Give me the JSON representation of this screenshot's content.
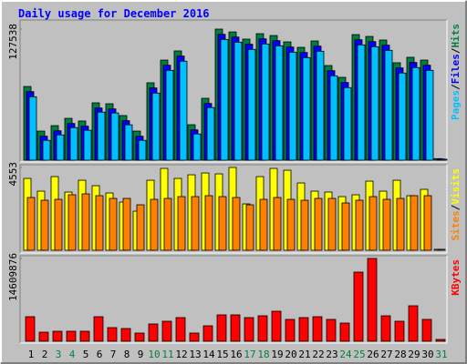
{
  "title": "Daily usage for December 2016",
  "legend_separator": "/",
  "chart_data": [
    {
      "type": "bar",
      "ylim": [
        0,
        127538
      ],
      "yticks": [
        127538
      ],
      "series": [
        {
          "name": "Hits",
          "color": "#008040",
          "values": [
            71700,
            28300,
            33600,
            40700,
            38100,
            55800,
            54900,
            43400,
            28300,
            75300,
            97400,
            106300,
            34500,
            60200,
            127538,
            124800,
            117800,
            123100,
            121300,
            115100,
            109800,
            116000,
            92100,
            80600,
            122200,
            120400,
            116900,
            94800,
            100100,
            97400,
            1500
          ]
        },
        {
          "name": "Files",
          "color": "#0000ff",
          "values": [
            66700,
            23300,
            28600,
            35700,
            33100,
            50800,
            49900,
            38400,
            23300,
            70300,
            92400,
            101300,
            29500,
            55200,
            122500,
            119800,
            112800,
            118100,
            116300,
            110100,
            104800,
            111000,
            87100,
            75600,
            117200,
            115400,
            111900,
            89800,
            95100,
            92400,
            1200
          ]
        },
        {
          "name": "Pages",
          "color": "#00c0ff",
          "values": [
            61700,
            19300,
            24600,
            31700,
            29100,
            46800,
            45900,
            34400,
            19300,
            65300,
            87400,
            96300,
            25500,
            51200,
            117500,
            114800,
            107800,
            113100,
            111300,
            105100,
            99800,
            106000,
            82100,
            70600,
            112200,
            110400,
            106900,
            84800,
            90100,
            87400,
            900
          ]
        }
      ]
    },
    {
      "type": "bar",
      "ylim": [
        0,
        4553
      ],
      "yticks": [
        4553
      ],
      "series": [
        {
          "name": "Visits",
          "color": "#ffff00",
          "values": [
            3950,
            3250,
            4050,
            3200,
            3850,
            3550,
            3150,
            2650,
            2150,
            3850,
            4500,
            3950,
            4150,
            4250,
            4200,
            4553,
            2550,
            4050,
            4500,
            4400,
            3700,
            3250,
            3200,
            2950,
            3050,
            3800,
            3250,
            3850,
            3000,
            3350,
            50
          ]
        },
        {
          "name": "Sites",
          "color": "#ff8000",
          "values": [
            2900,
            2750,
            2800,
            3050,
            3100,
            3000,
            2850,
            2850,
            2500,
            2800,
            2850,
            2950,
            2950,
            3000,
            2950,
            2900,
            2500,
            2800,
            2900,
            2800,
            2750,
            2850,
            2850,
            2600,
            2750,
            2950,
            2800,
            2850,
            3000,
            3000,
            50
          ]
        }
      ]
    },
    {
      "type": "bar",
      "ylim": [
        0,
        14609876
      ],
      "yticks": [
        14609876
      ],
      "categories": [
        "1",
        "2",
        "3",
        "4",
        "5",
        "6",
        "7",
        "8",
        "9",
        "10",
        "11",
        "12",
        "13",
        "14",
        "15",
        "16",
        "17",
        "18",
        "19",
        "20",
        "21",
        "22",
        "23",
        "24",
        "25",
        "26",
        "27",
        "28",
        "29",
        "30",
        "31"
      ],
      "category_colors": [
        "#000000",
        "#000000",
        "#008040",
        "#008040",
        "#000000",
        "#000000",
        "#000000",
        "#000000",
        "#000000",
        "#008040",
        "#008040",
        "#000000",
        "#000000",
        "#000000",
        "#000000",
        "#000000",
        "#008040",
        "#008040",
        "#000000",
        "#000000",
        "#000000",
        "#000000",
        "#000000",
        "#008040",
        "#008040",
        "#000000",
        "#000000",
        "#000000",
        "#000000",
        "#000000",
        "#008040"
      ],
      "series": [
        {
          "name": "KBytes",
          "color": "#ff0000",
          "values": [
            4335000,
            1605000,
            1766000,
            1766000,
            1766000,
            4335000,
            2408000,
            2248000,
            1445000,
            3050000,
            3532000,
            4174000,
            1445000,
            2729000,
            4656000,
            4656000,
            4174000,
            4495000,
            5298000,
            3853000,
            4174000,
            4335000,
            3853000,
            3211000,
            12202000,
            14609876,
            4495000,
            3532000,
            6261000,
            3853000,
            321000
          ]
        }
      ]
    }
  ]
}
